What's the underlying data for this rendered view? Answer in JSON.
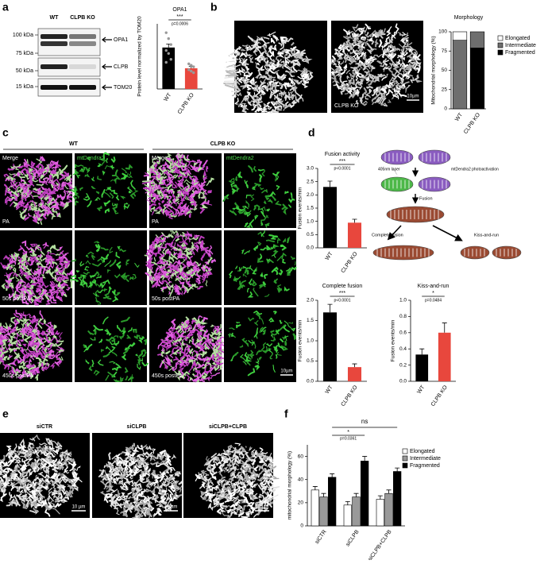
{
  "panel_labels": [
    "a",
    "b",
    "c",
    "d",
    "e",
    "f"
  ],
  "blot": {
    "lanes": [
      "WT",
      "CLPB KO"
    ],
    "markers": [
      "100 kDa",
      "75 kDa",
      "50 kDa",
      "15 kDa"
    ],
    "bands": [
      "OPA1",
      "CLPB",
      "TOM20"
    ]
  },
  "morphology_images": {
    "labels": [
      "WT",
      "CLPB KO"
    ],
    "scale_bar": "10µm"
  },
  "live_imaging": {
    "groups": [
      "WT",
      "CLPB KO"
    ],
    "channels": [
      "Merge",
      "mtDendra2"
    ],
    "timepoints": [
      "PA",
      "50s postPA",
      "450s postPA"
    ],
    "scale_bar": "10µm"
  },
  "diagram": {
    "laser": "405nm laser",
    "activation": "mtDendra2 photoactivation",
    "fusion": "Fusion",
    "outcomes": [
      "Complete fusion",
      "Kiss-and-run"
    ]
  },
  "knockdown_images": {
    "conditions": [
      "siCTR",
      "siCLPB",
      "siCLPB+CLPB"
    ],
    "scale_bar": "10 µm"
  },
  "chart_data": [
    {
      "type": "bar",
      "title": "OPA1",
      "ylabel": "Protein level normalized by TOM20",
      "categories": [
        "WT",
        "CLPB KO"
      ],
      "values": [
        1.4,
        0.7
      ],
      "errors": [
        0.12,
        0.07
      ],
      "colors": [
        "#000000",
        "#e8473d"
      ],
      "points": [
        [
          1.9,
          1.7,
          1.5,
          1.3,
          1.2,
          1.0,
          0.9
        ],
        [
          0.85,
          0.8,
          0.75,
          0.65,
          0.6,
          0.55
        ]
      ],
      "ylim": [
        0,
        2.2
      ],
      "annotations": [
        "***",
        "p=0.0006"
      ]
    },
    {
      "type": "stacked_bar",
      "title": "Morphology",
      "ylabel": "Mitochondrial morphology (%)",
      "categories": [
        "WT",
        "CLPB KO"
      ],
      "series": [
        {
          "name": "Fragmented",
          "color": "#000000",
          "values": [
            0,
            79
          ]
        },
        {
          "name": "Intermediate",
          "color": "#6e6e6e",
          "values": [
            89,
            21
          ]
        },
        {
          "name": "Elongated",
          "color": "#ffffff",
          "values": [
            11,
            0
          ]
        }
      ],
      "ylim": [
        0,
        100
      ],
      "yticks": [
        0,
        25,
        50,
        75,
        100
      ],
      "legend": "right"
    },
    {
      "type": "bar",
      "title": "Fusion activity",
      "ylabel": "Fusion events/min",
      "categories": [
        "WT",
        "CLPB KO"
      ],
      "values": [
        2.3,
        0.95
      ],
      "errors": [
        0.22,
        0.13
      ],
      "colors": [
        "#000000",
        "#e8473d"
      ],
      "ylim": [
        0,
        3
      ],
      "yticks": [
        {
          "value": 0,
          "label": "0.0"
        },
        0.5,
        {
          "value": 1,
          "label": "1.0"
        },
        1.5,
        {
          "value": 2,
          "label": "2.0"
        },
        2.5,
        {
          "value": 3,
          "label": "3.0"
        }
      ],
      "annotations": [
        "***",
        "p<0.0001"
      ]
    },
    {
      "type": "bar",
      "title": "Complete fusion",
      "ylabel": "Fusion events/min",
      "categories": [
        "WT",
        "CLPB KO"
      ],
      "values": [
        1.7,
        0.35
      ],
      "errors": [
        0.2,
        0.08
      ],
      "colors": [
        "#000000",
        "#e8473d"
      ],
      "ylim": [
        0,
        2
      ],
      "yticks": [
        {
          "value": 0,
          "label": "0.0"
        },
        0.5,
        {
          "value": 1,
          "label": "1.0"
        },
        1.5,
        {
          "value": 2,
          "label": "2.0"
        }
      ],
      "annotations": [
        "***",
        "p<0.0001"
      ]
    },
    {
      "type": "bar",
      "title": "Kiss-and-run",
      "ylabel": "Fusion events/min",
      "categories": [
        "WT",
        "CLPB KO"
      ],
      "values": [
        0.33,
        0.6
      ],
      "errors": [
        0.07,
        0.12
      ],
      "colors": [
        "#000000",
        "#e8473d"
      ],
      "ylim": [
        0,
        1
      ],
      "yticks": [
        {
          "value": 0,
          "label": "0.0"
        },
        0.2,
        0.4,
        0.6,
        0.8,
        {
          "value": 1,
          "label": "1.0"
        }
      ],
      "annotations": [
        "*",
        "p=0.0484"
      ]
    },
    {
      "type": "grouped_bar",
      "ylabel": "mitochondrial morphology (%)",
      "categories": [
        "siCTR",
        "siCLPB",
        "siCLPB+CLPB"
      ],
      "series": [
        {
          "name": "Elongated",
          "color": "#ffffff",
          "values": [
            31,
            18,
            23
          ],
          "errors": [
            3,
            3,
            3
          ]
        },
        {
          "name": "Intermediate",
          "color": "#999999",
          "values": [
            25,
            25,
            28
          ],
          "errors": [
            3,
            3,
            3
          ]
        },
        {
          "name": "Fragmented",
          "color": "#000000",
          "values": [
            42,
            56,
            47
          ],
          "errors": [
            3,
            4,
            3
          ]
        }
      ],
      "ylim": [
        0,
        70
      ],
      "yticks": [
        0,
        20,
        40,
        60
      ],
      "legend": "right",
      "annotations": [
        "ns",
        "*",
        "p=0.0361"
      ]
    }
  ]
}
